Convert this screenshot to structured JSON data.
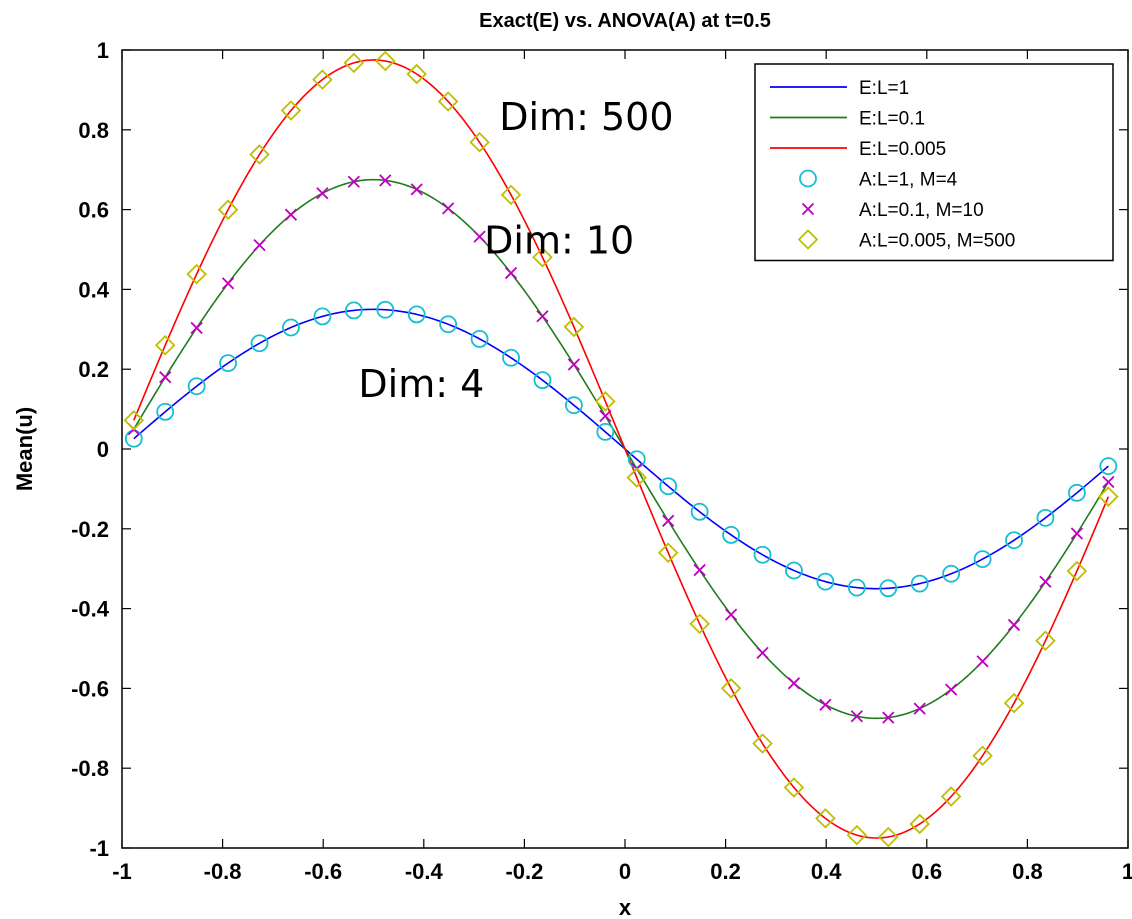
{
  "chart_data": {
    "type": "line",
    "title": "Exact(E) vs. ANOVA(A) at t=0.5",
    "xlabel": "x",
    "ylabel": "Mean(u)",
    "xlim": [
      -1,
      1
    ],
    "ylim": [
      -1,
      1
    ],
    "xticks": [
      "-1",
      "-0.8",
      "-0.6",
      "-0.4",
      "-0.2",
      "0",
      "0.2",
      "0.4",
      "0.6",
      "0.8",
      "1"
    ],
    "yticks": [
      "1",
      "0.8",
      "0.6",
      "0.4",
      "0.2",
      "0",
      "-0.2",
      "-0.4",
      "-0.6",
      "-0.8",
      "-1"
    ],
    "grid": false,
    "legend_position": "top-right",
    "marker_x": [
      -0.9765,
      -0.9141,
      -0.8516,
      -0.7891,
      -0.7266,
      -0.6641,
      -0.6016,
      -0.5391,
      -0.4766,
      -0.4141,
      -0.3516,
      -0.2891,
      -0.2266,
      -0.1641,
      -0.1016,
      -0.0391,
      0.0234,
      0.0859,
      0.1484,
      0.2109,
      0.2734,
      0.3359,
      0.3984,
      0.4609,
      0.5234,
      0.5859,
      0.6484,
      0.7109,
      0.7734,
      0.8359,
      0.8984,
      0.9609
    ],
    "series": [
      {
        "name": "E:L=1",
        "kind": "line",
        "color": "#0000ff",
        "amplitude": 0.35
      },
      {
        "name": "E:L=0.1",
        "kind": "line",
        "color": "#1e7d1e",
        "amplitude": 0.675
      },
      {
        "name": "E:L=0.005",
        "kind": "line",
        "color": "#ff0000",
        "amplitude": 0.975
      },
      {
        "name": "A:L=1, M=4",
        "kind": "marker",
        "marker": "circle",
        "color": "#17becf",
        "amplitude": 0.35
      },
      {
        "name": "A:L=0.1, M=10",
        "kind": "marker",
        "marker": "x",
        "color": "#bf00bf",
        "amplitude": 0.675
      },
      {
        "name": "A:L=0.005, M=500",
        "kind": "marker",
        "marker": "diamond",
        "color": "#bfbf00",
        "amplitude": 0.975
      }
    ],
    "annotations": [
      {
        "text": "Dim: 500",
        "x": -0.25,
        "y": 0.8
      },
      {
        "text": "Dim: 10",
        "x": -0.28,
        "y": 0.49
      },
      {
        "text": "Dim: 4",
        "x": -0.53,
        "y": 0.13
      }
    ]
  }
}
